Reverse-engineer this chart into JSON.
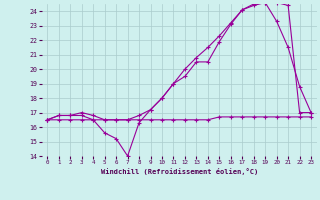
{
  "xlabel": "Windchill (Refroidissement éolien,°C)",
  "background_color": "#cff0ee",
  "grid_color": "#aacccc",
  "line_color": "#990099",
  "xlim": [
    -0.5,
    23.5
  ],
  "ylim": [
    14,
    24.5
  ],
  "yticks": [
    14,
    15,
    16,
    17,
    18,
    19,
    20,
    21,
    22,
    23,
    24
  ],
  "xticks": [
    0,
    1,
    2,
    3,
    4,
    5,
    6,
    7,
    8,
    9,
    10,
    11,
    12,
    13,
    14,
    15,
    16,
    17,
    18,
    19,
    20,
    21,
    22,
    23
  ],
  "series1_x": [
    0,
    1,
    2,
    3,
    4,
    5,
    6,
    7,
    8,
    9,
    10,
    11,
    12,
    13,
    14,
    15,
    16,
    17,
    18,
    19,
    20,
    21,
    22,
    23
  ],
  "series1_y": [
    16.5,
    16.8,
    16.8,
    16.8,
    16.5,
    15.6,
    15.2,
    14.0,
    16.3,
    17.2,
    18.0,
    19.0,
    19.5,
    20.5,
    20.5,
    21.9,
    23.1,
    24.1,
    24.4,
    24.6,
    23.3,
    21.5,
    18.8,
    17.0
  ],
  "series2_x": [
    0,
    1,
    2,
    3,
    4,
    5,
    6,
    7,
    8,
    9,
    10,
    11,
    12,
    13,
    14,
    15,
    16,
    17,
    18,
    19,
    20,
    21,
    22,
    23
  ],
  "series2_y": [
    16.5,
    16.8,
    16.8,
    17.0,
    16.8,
    16.5,
    16.5,
    16.5,
    16.8,
    17.2,
    18.0,
    19.0,
    20.0,
    20.8,
    21.5,
    22.3,
    23.2,
    24.1,
    24.5,
    24.6,
    24.6,
    24.4,
    17.0,
    17.0
  ],
  "series3_x": [
    0,
    1,
    2,
    3,
    4,
    5,
    6,
    7,
    8,
    9,
    10,
    11,
    12,
    13,
    14,
    15,
    16,
    17,
    18,
    19,
    20,
    21,
    22,
    23
  ],
  "series3_y": [
    16.5,
    16.5,
    16.5,
    16.5,
    16.5,
    16.5,
    16.5,
    16.5,
    16.5,
    16.5,
    16.5,
    16.5,
    16.5,
    16.5,
    16.5,
    16.7,
    16.7,
    16.7,
    16.7,
    16.7,
    16.7,
    16.7,
    16.7,
    16.7
  ]
}
